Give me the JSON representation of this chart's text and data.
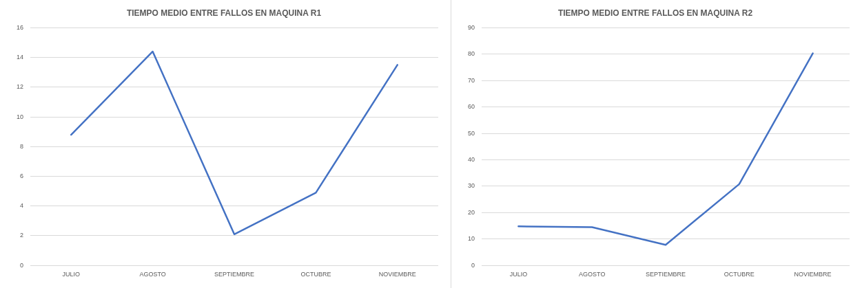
{
  "chart_data": [
    {
      "type": "line",
      "title": "TIEMPO MEDIO ENTRE FALLOS EN MAQUINA R1",
      "categories": [
        "JULIO",
        "AGOSTO",
        "SEPTIEMBRE",
        "OCTUBRE",
        "NOVIEMBRE"
      ],
      "series": [
        {
          "color": "#4472c4",
          "values": [
            8.8,
            14.4,
            2.1,
            4.9,
            13.5
          ]
        }
      ],
      "ylim": [
        0,
        16
      ],
      "yticks": [
        0,
        2,
        4,
        6,
        8,
        10,
        12,
        14,
        16
      ],
      "grid": "y",
      "legend": false,
      "marker": "none"
    },
    {
      "type": "line",
      "title": "TIEMPO MEDIO ENTRE FALLOS EN MAQUINA R2",
      "categories": [
        "JULIO",
        "AGOSTO",
        "SEPTIEMBRE",
        "OCTUBRE",
        "NOVIEMBRE"
      ],
      "series": [
        {
          "color": "#4472c4",
          "values": [
            14.8,
            14.5,
            7.8,
            30.8,
            80.3
          ]
        }
      ],
      "ylim": [
        0,
        90
      ],
      "yticks": [
        0,
        10,
        20,
        30,
        40,
        50,
        60,
        70,
        80,
        90
      ],
      "grid": "y",
      "legend": false,
      "marker": "none"
    }
  ]
}
